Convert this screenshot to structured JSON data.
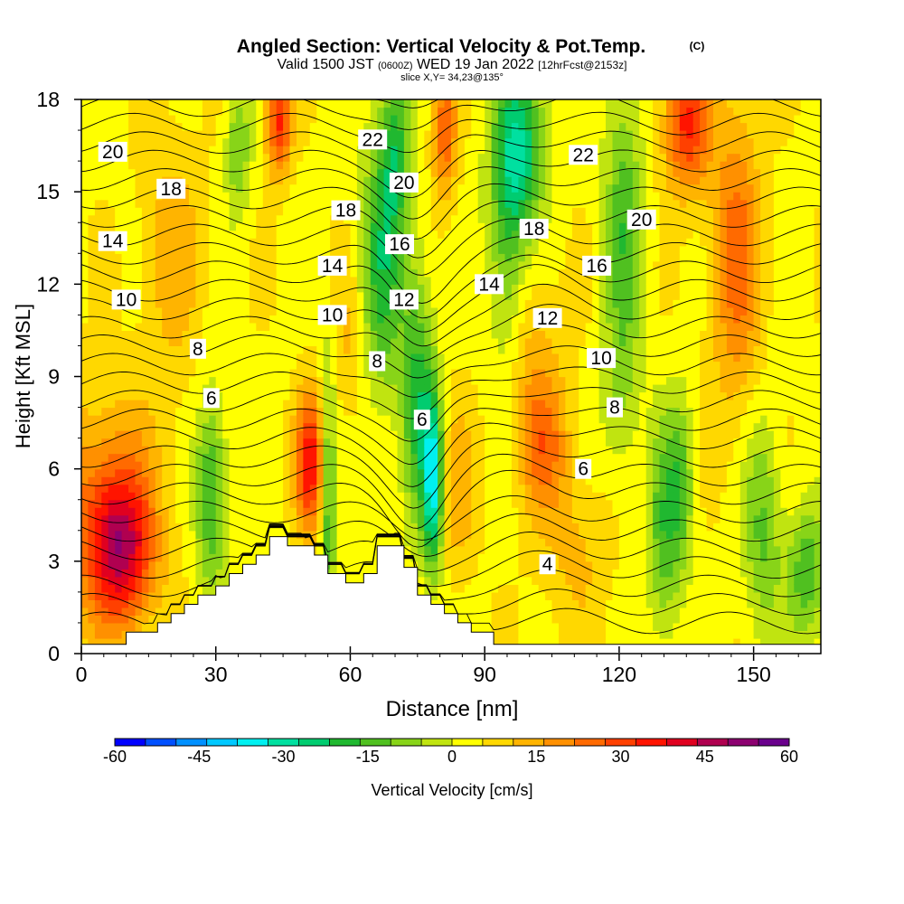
{
  "chart_data": {
    "type": "heatmap",
    "title": "Angled Section: Vertical Velocity & Pot.Temp.",
    "title_unit": "(C)",
    "subtitle_parts": [
      "Valid 1500 JST",
      "(0600Z)",
      "WED 19 Jan 2022",
      "[12hrFcst@2153z]"
    ],
    "slice_label": "slice X,Y= 34,23@135°",
    "xlabel": "Distance [nm]",
    "ylabel": "Height [Kft MSL]",
    "xlim": [
      0,
      165
    ],
    "ylim": [
      0,
      18
    ],
    "x_ticks": [
      "0",
      "30",
      "60",
      "90",
      "120",
      "150"
    ],
    "y_ticks": [
      "0",
      "3",
      "6",
      "9",
      "12",
      "15",
      "18"
    ],
    "colorbar": {
      "label": "Vertical Velocity [cm/s]",
      "ticks": [
        "-60",
        "-45",
        "-30",
        "-15",
        "0",
        "15",
        "30",
        "45",
        "60"
      ],
      "range": [
        -60,
        60
      ],
      "colors": [
        "#0000ff",
        "#0050ff",
        "#0090ff",
        "#00c8ff",
        "#00f0f0",
        "#00e0a0",
        "#00cc70",
        "#20b830",
        "#50c020",
        "#88d418",
        "#c0e410",
        "#ffff00",
        "#ffd800",
        "#ffb400",
        "#ff9000",
        "#ff6a00",
        "#ff4000",
        "#ff1400",
        "#e00020",
        "#b00050",
        "#8c0070",
        "#6a008c"
      ]
    },
    "terrain_profile": {
      "x": [
        0,
        10,
        10,
        17,
        17,
        20,
        20,
        23,
        23,
        26,
        26,
        30,
        30,
        33,
        33,
        36,
        36,
        39,
        39,
        42,
        42,
        46,
        46,
        52,
        52,
        55,
        55,
        59,
        59,
        63,
        63,
        66,
        66,
        72,
        72,
        75,
        75,
        78,
        78,
        81,
        81,
        84,
        84,
        87,
        87,
        92,
        92,
        165
      ],
      "y": [
        0.3,
        0.3,
        0.7,
        0.7,
        1.0,
        1.0,
        1.3,
        1.3,
        1.6,
        1.6,
        1.9,
        1.9,
        2.2,
        2.2,
        2.6,
        2.6,
        2.9,
        2.9,
        3.2,
        3.2,
        3.8,
        3.8,
        3.5,
        3.5,
        3.2,
        3.2,
        2.6,
        2.6,
        2.3,
        2.3,
        2.6,
        2.6,
        3.5,
        3.5,
        2.8,
        2.8,
        1.9,
        1.9,
        1.6,
        1.6,
        1.3,
        1.3,
        1.0,
        1.0,
        0.7,
        0.7,
        0.3,
        0.3
      ]
    },
    "velocity_features": [
      {
        "x": 9,
        "y": 3.3,
        "value": 32,
        "sx": 5,
        "sy": 1.7
      },
      {
        "x": 5,
        "y": 4.8,
        "value": 18,
        "sx": 8,
        "sy": 2.5
      },
      {
        "x": 29,
        "y": 5.2,
        "value": -22,
        "sx": 2.5,
        "sy": 2.2
      },
      {
        "x": 51,
        "y": 6.2,
        "value": 32,
        "sx": 2.3,
        "sy": 1.6
      },
      {
        "x": 55,
        "y": 5.0,
        "value": -20,
        "sx": 1.2,
        "sy": 3.5
      },
      {
        "x": 78.5,
        "y": 5.6,
        "value": -38,
        "sx": 1.6,
        "sy": 2.0
      },
      {
        "x": 75,
        "y": 8.5,
        "value": -22,
        "sx": 2.5,
        "sy": 3.0
      },
      {
        "x": 67,
        "y": 12.5,
        "value": -22,
        "sx": 3.5,
        "sy": 3.0
      },
      {
        "x": 70,
        "y": 16.5,
        "value": -20,
        "sx": 2.5,
        "sy": 2.0
      },
      {
        "x": 44,
        "y": 17.3,
        "value": 30,
        "sx": 2.0,
        "sy": 1.2
      },
      {
        "x": 35,
        "y": 16.5,
        "value": -15,
        "sx": 2.0,
        "sy": 1.5
      },
      {
        "x": 81,
        "y": 17.0,
        "value": 22,
        "sx": 2.0,
        "sy": 1.6
      },
      {
        "x": 98,
        "y": 16.5,
        "value": -28,
        "sx": 4.0,
        "sy": 2.0
      },
      {
        "x": 95,
        "y": 13.0,
        "value": -18,
        "sx": 3.0,
        "sy": 3.0
      },
      {
        "x": 121,
        "y": 14.0,
        "value": -18,
        "sx": 3.0,
        "sy": 3.5
      },
      {
        "x": 135,
        "y": 17.2,
        "value": 30,
        "sx": 3.5,
        "sy": 1.5
      },
      {
        "x": 146,
        "y": 13.0,
        "value": 20,
        "sx": 4.0,
        "sy": 3.5
      },
      {
        "x": 130,
        "y": 4.0,
        "value": -18,
        "sx": 2.5,
        "sy": 2.5
      },
      {
        "x": 152,
        "y": 4.0,
        "value": -16,
        "sx": 3.0,
        "sy": 2.5
      },
      {
        "x": 162,
        "y": 2.6,
        "value": -20,
        "sx": 3.0,
        "sy": 1.5
      },
      {
        "x": 134,
        "y": 5.5,
        "value": -15,
        "sx": 2.0,
        "sy": 2.0
      },
      {
        "x": 103,
        "y": 6.8,
        "value": 16,
        "sx": 4.0,
        "sy": 1.5
      },
      {
        "x": 84,
        "y": 5.2,
        "value": 10,
        "sx": 3.0,
        "sy": 2.0
      },
      {
        "x": 110,
        "y": 3.5,
        "value": 8,
        "sx": 6.0,
        "sy": 2.0
      },
      {
        "x": 60,
        "y": 10.0,
        "value": 8,
        "sx": 3.0,
        "sy": 2.0
      },
      {
        "x": 20,
        "y": 13.0,
        "value": 10,
        "sx": 5.0,
        "sy": 3.0
      },
      {
        "x": 100,
        "y": 10.0,
        "value": 10,
        "sx": 5.0,
        "sy": 2.5
      },
      {
        "x": 120,
        "y": 8.0,
        "value": -8,
        "sx": 3.0,
        "sy": 2.0
      }
    ],
    "contours": [
      {
        "label": "4",
        "label_x": 104,
        "label_y": 2.9
      },
      {
        "label": "6",
        "label_x": 29,
        "label_y": 8.3
      },
      {
        "label": "6",
        "label_x": 76,
        "label_y": 7.6
      },
      {
        "label": "6",
        "label_x": 112,
        "label_y": 6.0
      },
      {
        "label": "8",
        "label_x": 26,
        "label_y": 9.9
      },
      {
        "label": "8",
        "label_x": 66,
        "label_y": 9.5
      },
      {
        "label": "8",
        "label_x": 119,
        "label_y": 8.0
      },
      {
        "label": "10",
        "label_x": 10,
        "label_y": 11.5
      },
      {
        "label": "10",
        "label_x": 56,
        "label_y": 11.0
      },
      {
        "label": "10",
        "label_x": 116,
        "label_y": 9.6
      },
      {
        "label": "12",
        "label_x": 72,
        "label_y": 11.5
      },
      {
        "label": "12",
        "label_x": 104,
        "label_y": 10.9
      },
      {
        "label": "14",
        "label_x": 7,
        "label_y": 13.4
      },
      {
        "label": "14",
        "label_x": 56,
        "label_y": 12.6
      },
      {
        "label": "14",
        "label_x": 91,
        "label_y": 12.0
      },
      {
        "label": "16",
        "label_x": 71,
        "label_y": 13.3
      },
      {
        "label": "16",
        "label_x": 115,
        "label_y": 12.6
      },
      {
        "label": "18",
        "label_x": 20,
        "label_y": 15.1
      },
      {
        "label": "18",
        "label_x": 59,
        "label_y": 14.4
      },
      {
        "label": "18",
        "label_x": 101,
        "label_y": 13.8
      },
      {
        "label": "20",
        "label_x": 7,
        "label_y": 16.3
      },
      {
        "label": "20",
        "label_x": 72,
        "label_y": 15.3
      },
      {
        "label": "20",
        "label_x": 125,
        "label_y": 14.1
      },
      {
        "label": "22",
        "label_x": 65,
        "label_y": 16.7
      },
      {
        "label": "22",
        "label_x": 112,
        "label_y": 16.2
      }
    ]
  }
}
